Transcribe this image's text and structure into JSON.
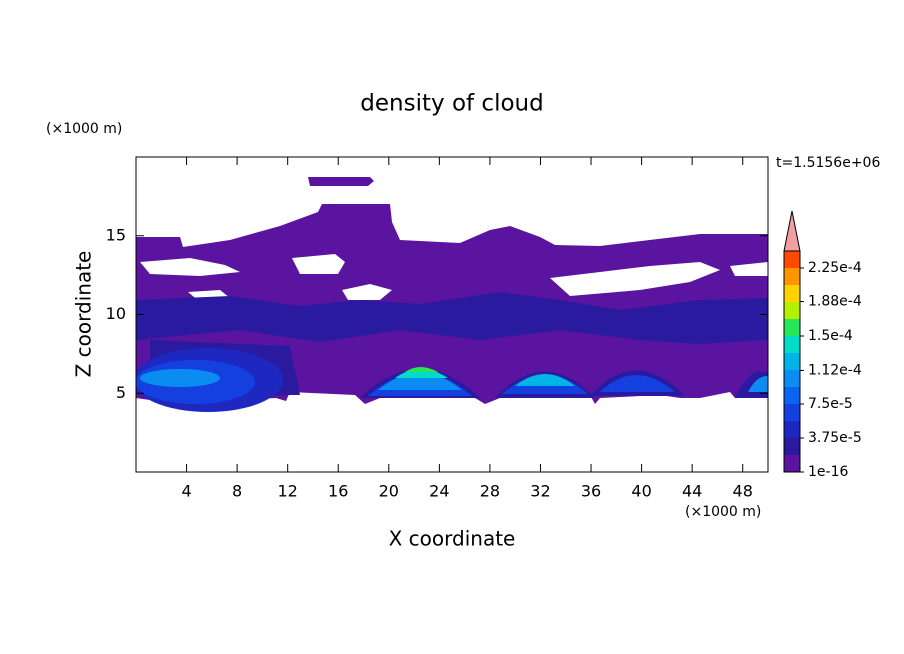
{
  "chart_data": {
    "type": "contour",
    "title": "density of cloud",
    "xlabel": "X coordinate",
    "ylabel": "Z coordinate",
    "xunit": "(×1000 m)",
    "yunit": "(×1000 m)",
    "time_label": "t=1.5156e+06",
    "xlim": [
      0,
      50
    ],
    "ylim": [
      0,
      20
    ],
    "xticks": [
      4,
      8,
      12,
      16,
      20,
      24,
      28,
      32,
      36,
      40,
      44,
      48
    ],
    "yticks": [
      5,
      10,
      15
    ],
    "colorbar_ticks": [
      1e-16,
      {
        "value": 3.75e-05,
        "label": "3.75e-5"
      },
      {
        "value": 7.5e-05,
        "label": "7.5e-5"
      },
      {
        "value": 0.000112,
        "label": "1.12e-4"
      },
      {
        "value": 0.00015,
        "label": "1.5e-4"
      },
      {
        "value": 0.000188,
        "label": "1.88e-4"
      },
      {
        "value": 0.000225,
        "label": "2.25e-4"
      }
    ],
    "colors": [
      "#5a14a0",
      "#2a1aa0",
      "#1e28c0",
      "#1440e0",
      "#0a64f0",
      "#0a8cf0",
      "#00b4e6",
      "#00dcc8",
      "#28e65a",
      "#b4f000",
      "#ffd200",
      "#ff9600",
      "#ff4b00"
    ],
    "extend_color": "#f0a0a0"
  }
}
